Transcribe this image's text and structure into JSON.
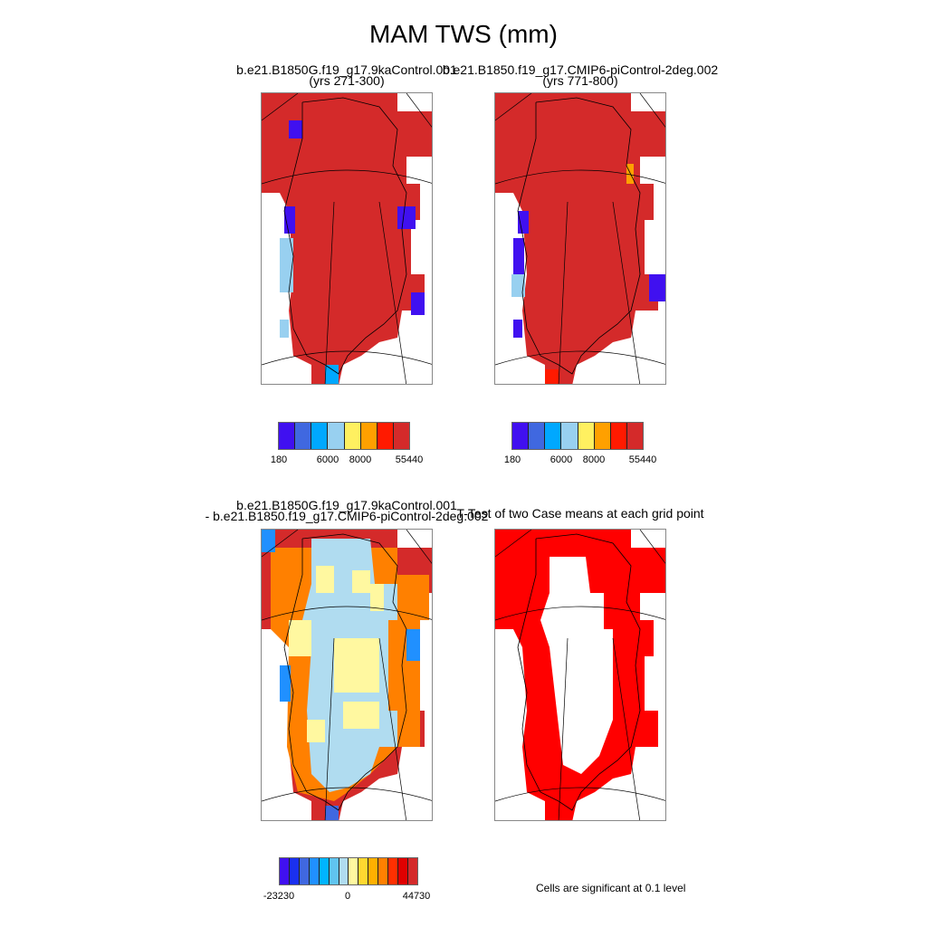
{
  "title": "MAM TWS (mm)",
  "panels": [
    {
      "line1": "b.e21.B1850G.f19_g17.9kaControl.001",
      "line2": "(yrs 271-300)"
    },
    {
      "line1": "b.e21.B1850.f19_g17.CMIP6-piControl-2deg.002",
      "line2": "(yrs 771-800)"
    },
    {
      "line1": "b.e21.B1850G.f19_g17.9kaControl.001",
      "line2": "- b.e21.B1850.f19_g17.CMIP6-piControl-2deg.002"
    },
    {
      "line1": "T-Test of two Case means at each grid point"
    }
  ],
  "colorbars": {
    "case": {
      "colors": [
        "#4010f0",
        "#4068e0",
        "#00a8ff",
        "#98d0f0",
        "#fff060",
        "#ffa000",
        "#ff1a00",
        "#d42a2a"
      ],
      "labels": [
        "180",
        "6000",
        "8000",
        "55440"
      ]
    },
    "diff": {
      "colors": [
        "#4010f0",
        "#1a30f0",
        "#4068e0",
        "#2090ff",
        "#00b4ff",
        "#60c4f0",
        "#b0dcf0",
        "#fff8a0",
        "#ffd830",
        "#ffb000",
        "#ff8000",
        "#ff3000",
        "#e00000",
        "#d42a2a"
      ],
      "labels": [
        "-23230",
        "0",
        "44730"
      ]
    }
  },
  "significance_color": "#ff0000",
  "note": "Cells are significant at 0.1 level"
}
